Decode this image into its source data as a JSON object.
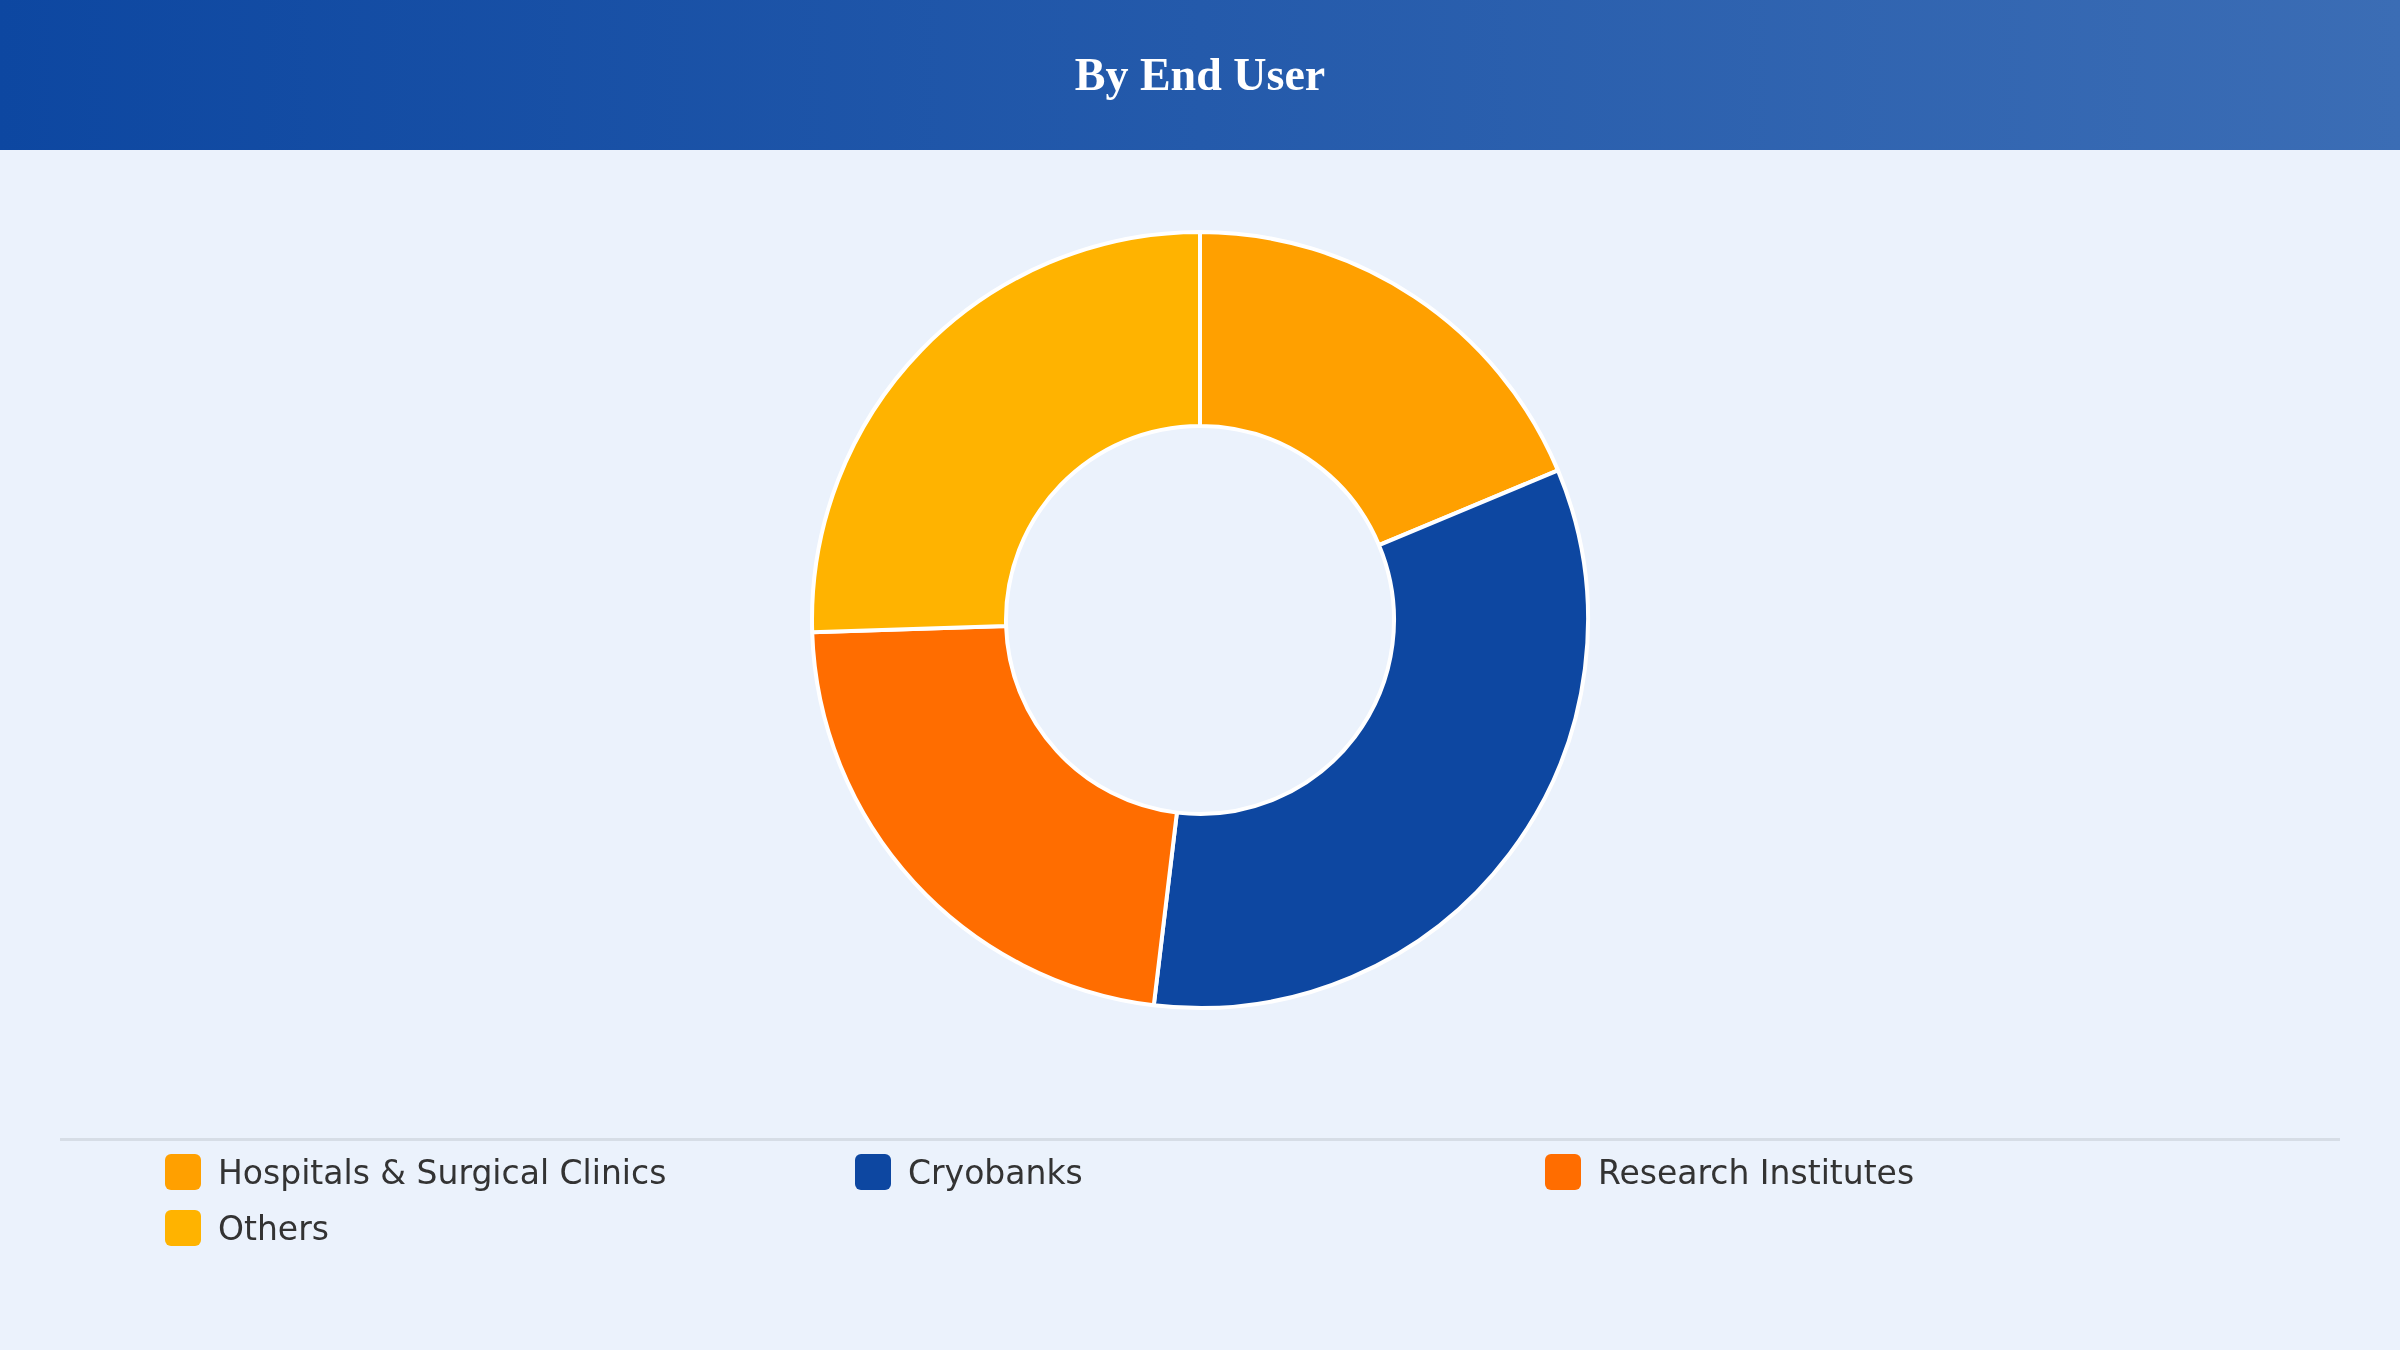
{
  "chart_data": {
    "type": "donut",
    "title": "By End User",
    "categories": [
      "Hospitals & Surgical Clinics",
      "Cryobanks",
      "Research Institutes",
      "Others"
    ],
    "values": [
      18.7,
      33.2,
      22.6,
      25.5
    ],
    "colors": [
      "#ffa000",
      "#0d47a1",
      "#ff6d00",
      "#ffb300"
    ],
    "legend": "bottom"
  }
}
